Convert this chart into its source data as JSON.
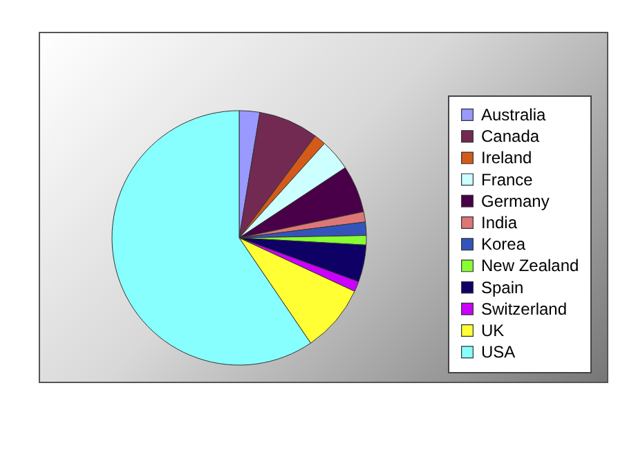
{
  "chart_data": {
    "type": "pie",
    "categories": [
      "Australia",
      "Canada",
      "Ireland",
      "France",
      "Germany",
      "India",
      "Korea",
      "New Zealand",
      "Spain",
      "Switzerland",
      "UK",
      "USA"
    ],
    "values": [
      2.6,
      7.6,
      1.5,
      4.0,
      6.0,
      1.3,
      1.7,
      1.2,
      4.7,
      1.3,
      8.6,
      59.5
    ],
    "colors": [
      "#9999ff",
      "#722a52",
      "#d45a1a",
      "#ccffff",
      "#4a0048",
      "#dd7777",
      "#3355bb",
      "#88ff33",
      "#0f0066",
      "#cc00ff",
      "#ffff33",
      "#88ffff"
    ],
    "legend": "right"
  }
}
